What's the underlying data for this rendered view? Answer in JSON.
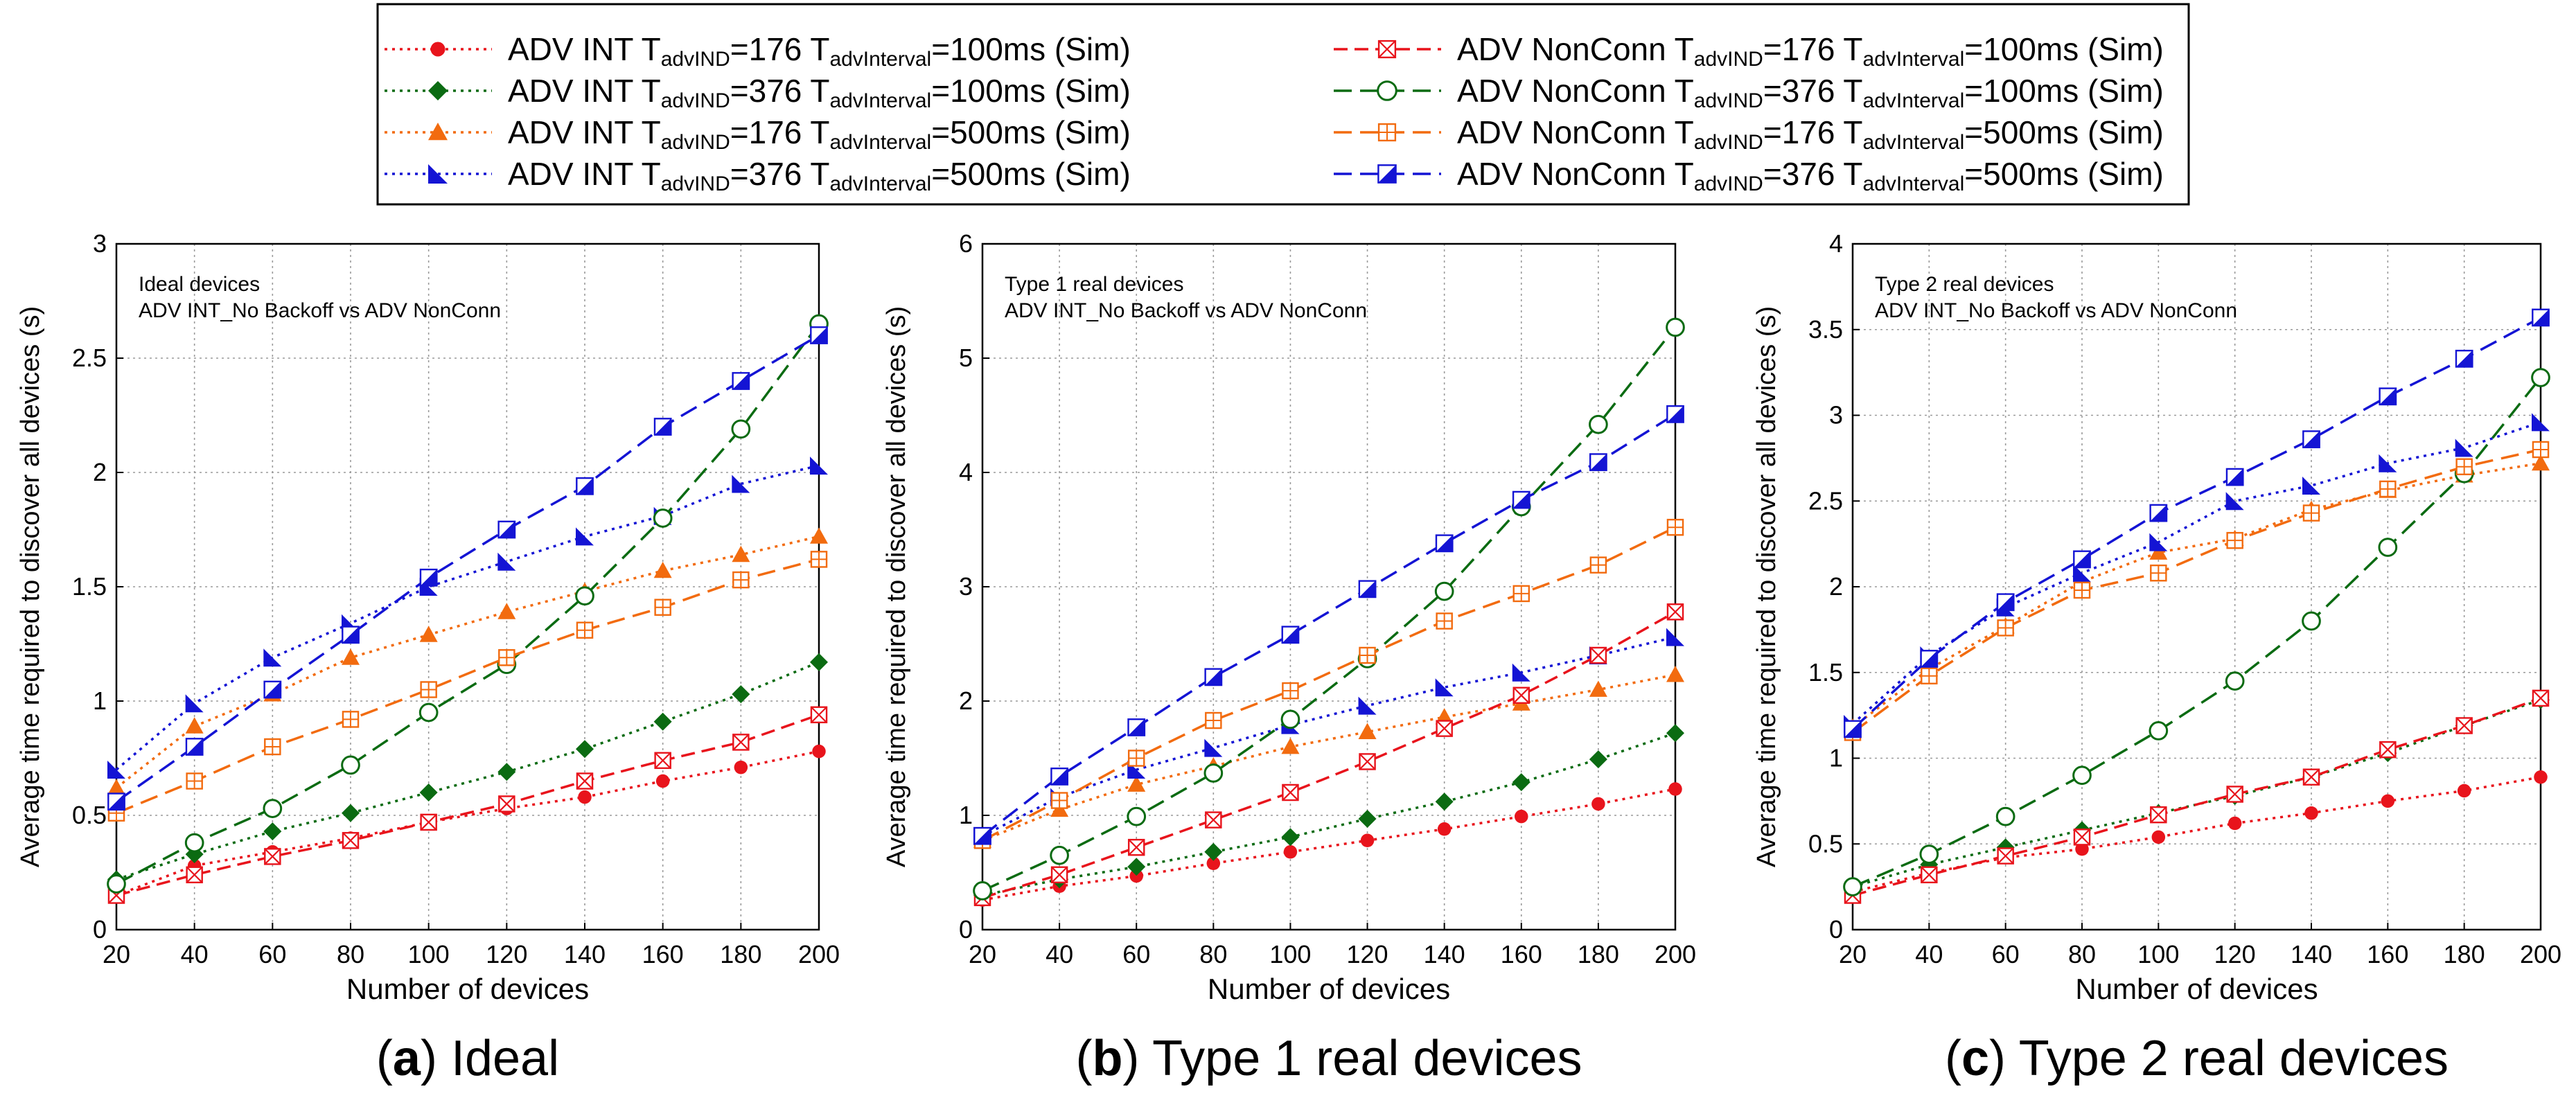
{
  "legend": {
    "items": [
      {
        "id": "int_176_100",
        "prefix": "ADV INT",
        "indLabel": "advIND",
        "indVal": "176",
        "intLabel": "advInterval",
        "intVal": "100ms (Sim)",
        "color": "#e8141c",
        "dash": "dot",
        "marker": "circle"
      },
      {
        "id": "int_376_100",
        "prefix": "ADV INT",
        "indLabel": "advIND",
        "indVal": "376",
        "intLabel": "advInterval",
        "intVal": "100ms (Sim)",
        "color": "#0b6b12",
        "dash": "dot",
        "marker": "diamond"
      },
      {
        "id": "int_176_500",
        "prefix": "ADV INT",
        "indLabel": "advIND",
        "indVal": "176",
        "intLabel": "advInterval",
        "intVal": "500ms (Sim)",
        "color": "#f26b0f",
        "dash": "dot",
        "marker": "triangle"
      },
      {
        "id": "int_376_500",
        "prefix": "ADV INT",
        "indLabel": "advIND",
        "indVal": "376",
        "intLabel": "advInterval",
        "intVal": "500ms (Sim)",
        "color": "#1414d4",
        "dash": "dot",
        "marker": "half-triangle"
      },
      {
        "id": "nc_176_100",
        "prefix": "ADV NonConn",
        "indLabel": "advIND",
        "indVal": "176",
        "intLabel": "advInterval",
        "intVal": "100ms (Sim)",
        "color": "#e8141c",
        "dash": "dash",
        "marker": "square-x"
      },
      {
        "id": "nc_376_100",
        "prefix": "ADV NonConn",
        "indLabel": "advIND",
        "indVal": "376",
        "intLabel": "advInterval",
        "intVal": "100ms (Sim)",
        "color": "#0b6b12",
        "dash": "longdash",
        "marker": "open-circle"
      },
      {
        "id": "nc_176_500",
        "prefix": "ADV NonConn",
        "indLabel": "advIND",
        "indVal": "176",
        "intLabel": "advInterval",
        "intVal": "500ms (Sim)",
        "color": "#f26b0f",
        "dash": "longdash",
        "marker": "square-plus"
      },
      {
        "id": "nc_376_500",
        "prefix": "ADV NonConn",
        "indLabel": "advIND",
        "indVal": "376",
        "intLabel": "advInterval",
        "intVal": "500ms (Sim)",
        "color": "#1414d4",
        "dash": "longdash",
        "marker": "half-square"
      }
    ]
  },
  "chart_data": [
    {
      "type": "line",
      "panel_caption_letter": "a",
      "panel_caption_text": "Ideal",
      "annotation_line1": "Ideal devices",
      "annotation_line2": "ADV INT_No Backoff vs ADV NonConn",
      "xlabel": "Number of devices",
      "ylabel": "Average time required to discover all devices (s)",
      "x": [
        20,
        40,
        60,
        80,
        100,
        120,
        140,
        160,
        180,
        200
      ],
      "xlim": [
        20,
        200
      ],
      "ylim": [
        0,
        3
      ],
      "yticks": [
        0,
        0.5,
        1,
        1.5,
        2,
        2.5,
        3
      ],
      "ytick_labels": [
        "0",
        "0.5",
        "1",
        "1.5",
        "2",
        "2.5",
        "3"
      ],
      "grid": true,
      "series": [
        {
          "id": "int_176_100",
          "values": [
            0.15,
            0.28,
            0.34,
            0.4,
            0.47,
            0.53,
            0.58,
            0.65,
            0.71,
            0.78
          ]
        },
        {
          "id": "int_376_100",
          "values": [
            0.22,
            0.33,
            0.43,
            0.51,
            0.6,
            0.69,
            0.79,
            0.91,
            1.03,
            1.17
          ]
        },
        {
          "id": "int_176_500",
          "values": [
            0.62,
            0.89,
            1.03,
            1.19,
            1.29,
            1.39,
            1.48,
            1.57,
            1.64,
            1.72
          ]
        },
        {
          "id": "int_376_500",
          "values": [
            0.7,
            0.99,
            1.19,
            1.34,
            1.5,
            1.61,
            1.72,
            1.81,
            1.95,
            2.03
          ]
        },
        {
          "id": "nc_176_100",
          "values": [
            0.15,
            0.24,
            0.32,
            0.39,
            0.47,
            0.55,
            0.65,
            0.74,
            0.82,
            0.94
          ]
        },
        {
          "id": "nc_376_100",
          "values": [
            0.2,
            0.38,
            0.53,
            0.72,
            0.95,
            1.16,
            1.46,
            1.8,
            2.19,
            2.65
          ]
        },
        {
          "id": "nc_176_500",
          "values": [
            0.51,
            0.65,
            0.8,
            0.92,
            1.05,
            1.19,
            1.31,
            1.41,
            1.53,
            1.62
          ]
        },
        {
          "id": "nc_376_500",
          "values": [
            0.56,
            0.8,
            1.05,
            1.29,
            1.54,
            1.75,
            1.94,
            2.2,
            2.4,
            2.6
          ]
        }
      ]
    },
    {
      "type": "line",
      "panel_caption_letter": "b",
      "panel_caption_text": "Type 1 real devices",
      "annotation_line1": "Type 1 real devices",
      "annotation_line2": "ADV INT_No Backoff vs ADV NonConn",
      "xlabel": "Number of devices",
      "ylabel": "Average time required to discover all devices (s)",
      "x": [
        20,
        40,
        60,
        80,
        100,
        120,
        140,
        160,
        180,
        200
      ],
      "xlim": [
        20,
        200
      ],
      "ylim": [
        0,
        6
      ],
      "yticks": [
        0,
        1,
        2,
        3,
        4,
        5,
        6
      ],
      "ytick_labels": [
        "0",
        "1",
        "2",
        "3",
        "4",
        "5",
        "6"
      ],
      "grid": true,
      "series": [
        {
          "id": "int_176_100",
          "values": [
            0.26,
            0.38,
            0.47,
            0.58,
            0.68,
            0.78,
            0.88,
            0.99,
            1.1,
            1.23
          ]
        },
        {
          "id": "int_376_100",
          "values": [
            0.3,
            0.44,
            0.55,
            0.68,
            0.81,
            0.97,
            1.12,
            1.29,
            1.49,
            1.72
          ]
        },
        {
          "id": "int_176_500",
          "values": [
            0.78,
            1.05,
            1.27,
            1.43,
            1.6,
            1.73,
            1.86,
            1.98,
            2.1,
            2.23
          ]
        },
        {
          "id": "int_376_500",
          "values": [
            0.82,
            1.16,
            1.4,
            1.59,
            1.79,
            1.96,
            2.12,
            2.25,
            2.4,
            2.56
          ]
        },
        {
          "id": "nc_176_100",
          "values": [
            0.28,
            0.48,
            0.72,
            0.96,
            1.2,
            1.47,
            1.76,
            2.05,
            2.4,
            2.78
          ]
        },
        {
          "id": "nc_376_100",
          "values": [
            0.34,
            0.65,
            0.99,
            1.37,
            1.84,
            2.37,
            2.96,
            3.7,
            4.42,
            5.27
          ]
        },
        {
          "id": "nc_176_500",
          "values": [
            0.78,
            1.13,
            1.5,
            1.83,
            2.09,
            2.4,
            2.7,
            2.94,
            3.19,
            3.52
          ]
        },
        {
          "id": "nc_376_500",
          "values": [
            0.82,
            1.34,
            1.77,
            2.21,
            2.58,
            2.98,
            3.38,
            3.76,
            4.09,
            4.51
          ]
        }
      ]
    },
    {
      "type": "line",
      "panel_caption_letter": "c",
      "panel_caption_text": "Type 2 real devices",
      "annotation_line1": "Type 2 real devices",
      "annotation_line2": "ADV INT_No Backoff vs ADV NonConn",
      "xlabel": "Number of devices",
      "ylabel": "Average time required to discover all devices (s)",
      "x": [
        20,
        40,
        60,
        80,
        100,
        120,
        140,
        160,
        180,
        200
      ],
      "xlim": [
        20,
        200
      ],
      "ylim": [
        0,
        4
      ],
      "yticks": [
        0,
        0.5,
        1,
        1.5,
        2,
        2.5,
        3,
        3.5,
        4
      ],
      "ytick_labels": [
        "0",
        "0.5",
        "1",
        "1.5",
        "2",
        "2.5",
        "3",
        "3.5",
        "4"
      ],
      "grid": true,
      "series": [
        {
          "id": "int_176_100",
          "values": [
            0.22,
            0.33,
            0.42,
            0.47,
            0.54,
            0.62,
            0.68,
            0.75,
            0.81,
            0.89
          ]
        },
        {
          "id": "int_376_100",
          "values": [
            0.25,
            0.38,
            0.48,
            0.58,
            0.68,
            0.78,
            0.89,
            1.03,
            1.19,
            1.34
          ]
        },
        {
          "id": "int_176_500",
          "values": [
            1.18,
            1.52,
            1.77,
            2.03,
            2.2,
            2.28,
            2.45,
            2.56,
            2.65,
            2.72
          ]
        },
        {
          "id": "int_376_500",
          "values": [
            1.2,
            1.6,
            1.88,
            2.08,
            2.26,
            2.5,
            2.59,
            2.72,
            2.81,
            2.96
          ]
        },
        {
          "id": "nc_176_100",
          "values": [
            0.2,
            0.32,
            0.43,
            0.54,
            0.67,
            0.79,
            0.89,
            1.05,
            1.19,
            1.35
          ]
        },
        {
          "id": "nc_376_100",
          "values": [
            0.25,
            0.44,
            0.66,
            0.9,
            1.16,
            1.45,
            1.8,
            2.23,
            2.66,
            3.22
          ]
        },
        {
          "id": "nc_176_500",
          "values": [
            1.15,
            1.48,
            1.76,
            1.98,
            2.08,
            2.27,
            2.43,
            2.57,
            2.7,
            2.8
          ]
        },
        {
          "id": "nc_376_500",
          "values": [
            1.17,
            1.58,
            1.91,
            2.16,
            2.43,
            2.64,
            2.86,
            3.11,
            3.33,
            3.57
          ]
        }
      ]
    }
  ]
}
